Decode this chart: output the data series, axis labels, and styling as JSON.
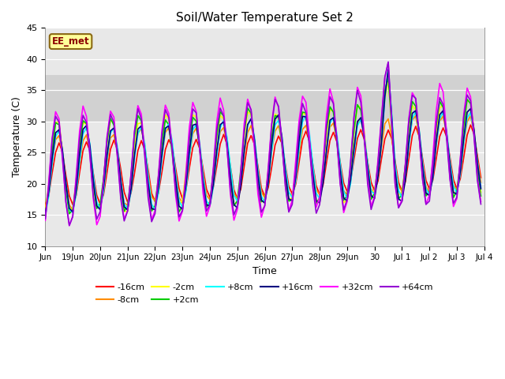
{
  "title": "Soil/Water Temperature Set 2",
  "xlabel": "Time",
  "ylabel": "Temperature (C)",
  "ylim": [
    10,
    45
  ],
  "annotation": "EE_met",
  "series_order": [
    "-16cm",
    "-8cm",
    "-2cm",
    "+2cm",
    "+8cm",
    "+16cm",
    "+32cm",
    "+64cm"
  ],
  "series_colors": {
    "-16cm": "#FF0000",
    "-8cm": "#FF8C00",
    "-2cm": "#FFFF00",
    "+2cm": "#00CC00",
    "+8cm": "#00FFFF",
    "+16cm": "#000080",
    "+32cm": "#FF00FF",
    "+64cm": "#9400D3"
  },
  "lw": 1.2,
  "x_tick_labels": [
    "Jun",
    "19Jun",
    "20Jun",
    "21Jun",
    "22Jun",
    "23Jun",
    "24Jun",
    "25Jun",
    "26Jun",
    "27Jun",
    "28Jun",
    "29Jun",
    "30",
    "Jul 1",
    "Jul 2",
    "Jul 3",
    "Jul 4"
  ],
  "yticks": [
    10,
    15,
    20,
    25,
    30,
    35,
    40,
    45
  ],
  "gray_band": [
    30,
    37.5
  ],
  "bg_color": "#E8E8E8",
  "grid_color": "#FFFFFF"
}
